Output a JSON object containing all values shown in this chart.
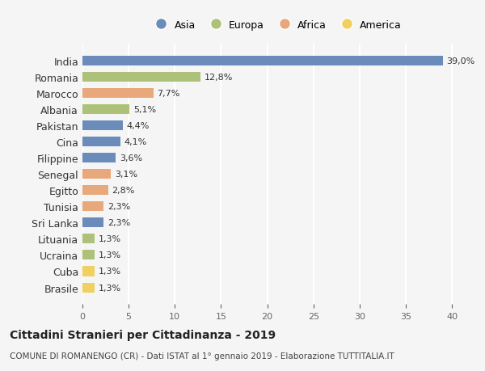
{
  "countries": [
    "India",
    "Romania",
    "Marocco",
    "Albania",
    "Pakistan",
    "Cina",
    "Filippine",
    "Senegal",
    "Egitto",
    "Tunisia",
    "Sri Lanka",
    "Lituania",
    "Ucraina",
    "Cuba",
    "Brasile"
  ],
  "values": [
    39.0,
    12.8,
    7.7,
    5.1,
    4.4,
    4.1,
    3.6,
    3.1,
    2.8,
    2.3,
    2.3,
    1.3,
    1.3,
    1.3,
    1.3
  ],
  "labels": [
    "39,0%",
    "12,8%",
    "7,7%",
    "5,1%",
    "4,4%",
    "4,1%",
    "3,6%",
    "3,1%",
    "2,8%",
    "2,3%",
    "2,3%",
    "1,3%",
    "1,3%",
    "1,3%",
    "1,3%"
  ],
  "continents": [
    "Asia",
    "Europa",
    "Africa",
    "Europa",
    "Asia",
    "Asia",
    "Asia",
    "Africa",
    "Africa",
    "Africa",
    "Asia",
    "Europa",
    "Europa",
    "America",
    "America"
  ],
  "continent_colors": {
    "Asia": "#6b8cba",
    "Europa": "#adc178",
    "Africa": "#e8a87c",
    "America": "#f0d060"
  },
  "legend_order": [
    "Asia",
    "Europa",
    "Africa",
    "America"
  ],
  "title": "Cittadini Stranieri per Cittadinanza - 2019",
  "subtitle": "COMUNE DI ROMANENGO (CR) - Dati ISTAT al 1° gennaio 2019 - Elaborazione TUTTITALIA.IT",
  "xlim": [
    0,
    42
  ],
  "xticks": [
    0,
    5,
    10,
    15,
    20,
    25,
    30,
    35,
    40
  ],
  "background_color": "#f5f5f5",
  "grid_color": "#ffffff",
  "bar_height": 0.6
}
